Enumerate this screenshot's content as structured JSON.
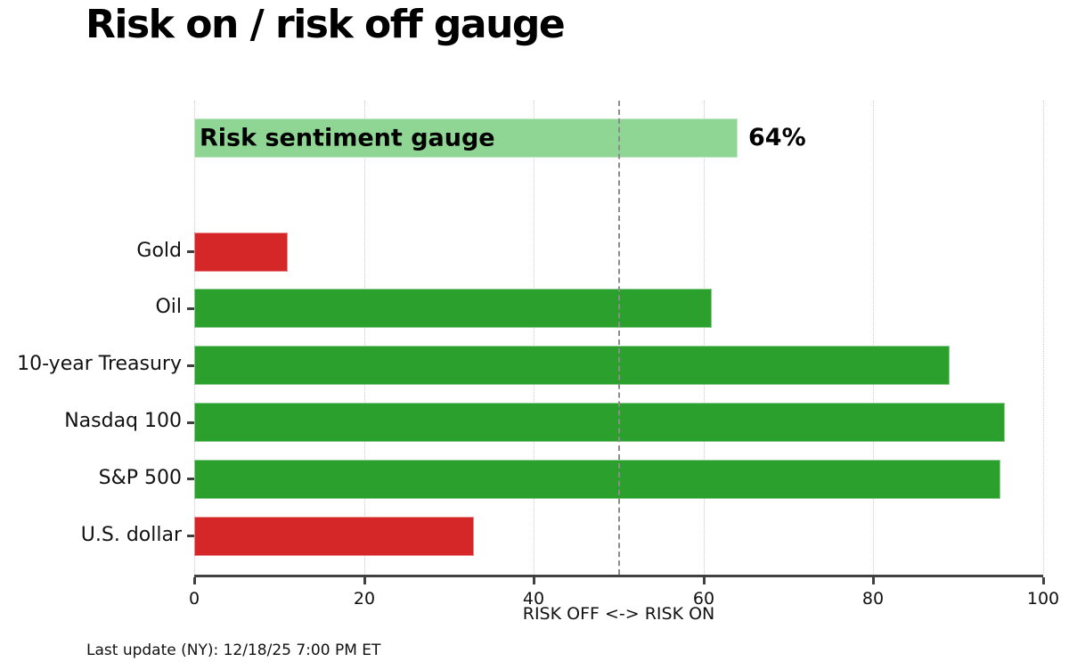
{
  "footer": "Last update (NY): 12/18/25 7:00 PM ET",
  "chart_data": {
    "type": "bar",
    "orientation": "horizontal",
    "title": "Risk on / risk off gauge",
    "xlabel": "RISK OFF <-> RISK ON",
    "xlim": [
      0,
      100
    ],
    "xticks": [
      0,
      20,
      40,
      60,
      80,
      100
    ],
    "grid": "vertical-dotted",
    "legend": "none",
    "reference_line": {
      "x": 50,
      "style": "dashed",
      "color": "#8c8c8c"
    },
    "palette": {
      "risk_on_green": "#2ca02c",
      "risk_off_red": "#d62728",
      "gauge_light_green": "#8fd694"
    },
    "rows": [
      {
        "label": "Risk sentiment gauge",
        "value": 64,
        "color_key": "gauge_light_green",
        "label_position": "inside",
        "value_label": "64%"
      },
      {
        "spacer": true
      },
      {
        "label": "Gold",
        "value": 11,
        "color_key": "risk_off_red"
      },
      {
        "label": "Oil",
        "value": 61,
        "color_key": "risk_on_green"
      },
      {
        "label": "10-year Treasury",
        "value": 89,
        "color_key": "risk_on_green"
      },
      {
        "label": "Nasdaq 100",
        "value": 95.5,
        "color_key": "risk_on_green"
      },
      {
        "label": "S&P 500",
        "value": 95,
        "color_key": "risk_on_green"
      },
      {
        "label": "U.S. dollar",
        "value": 33,
        "color_key": "risk_off_red"
      }
    ]
  }
}
